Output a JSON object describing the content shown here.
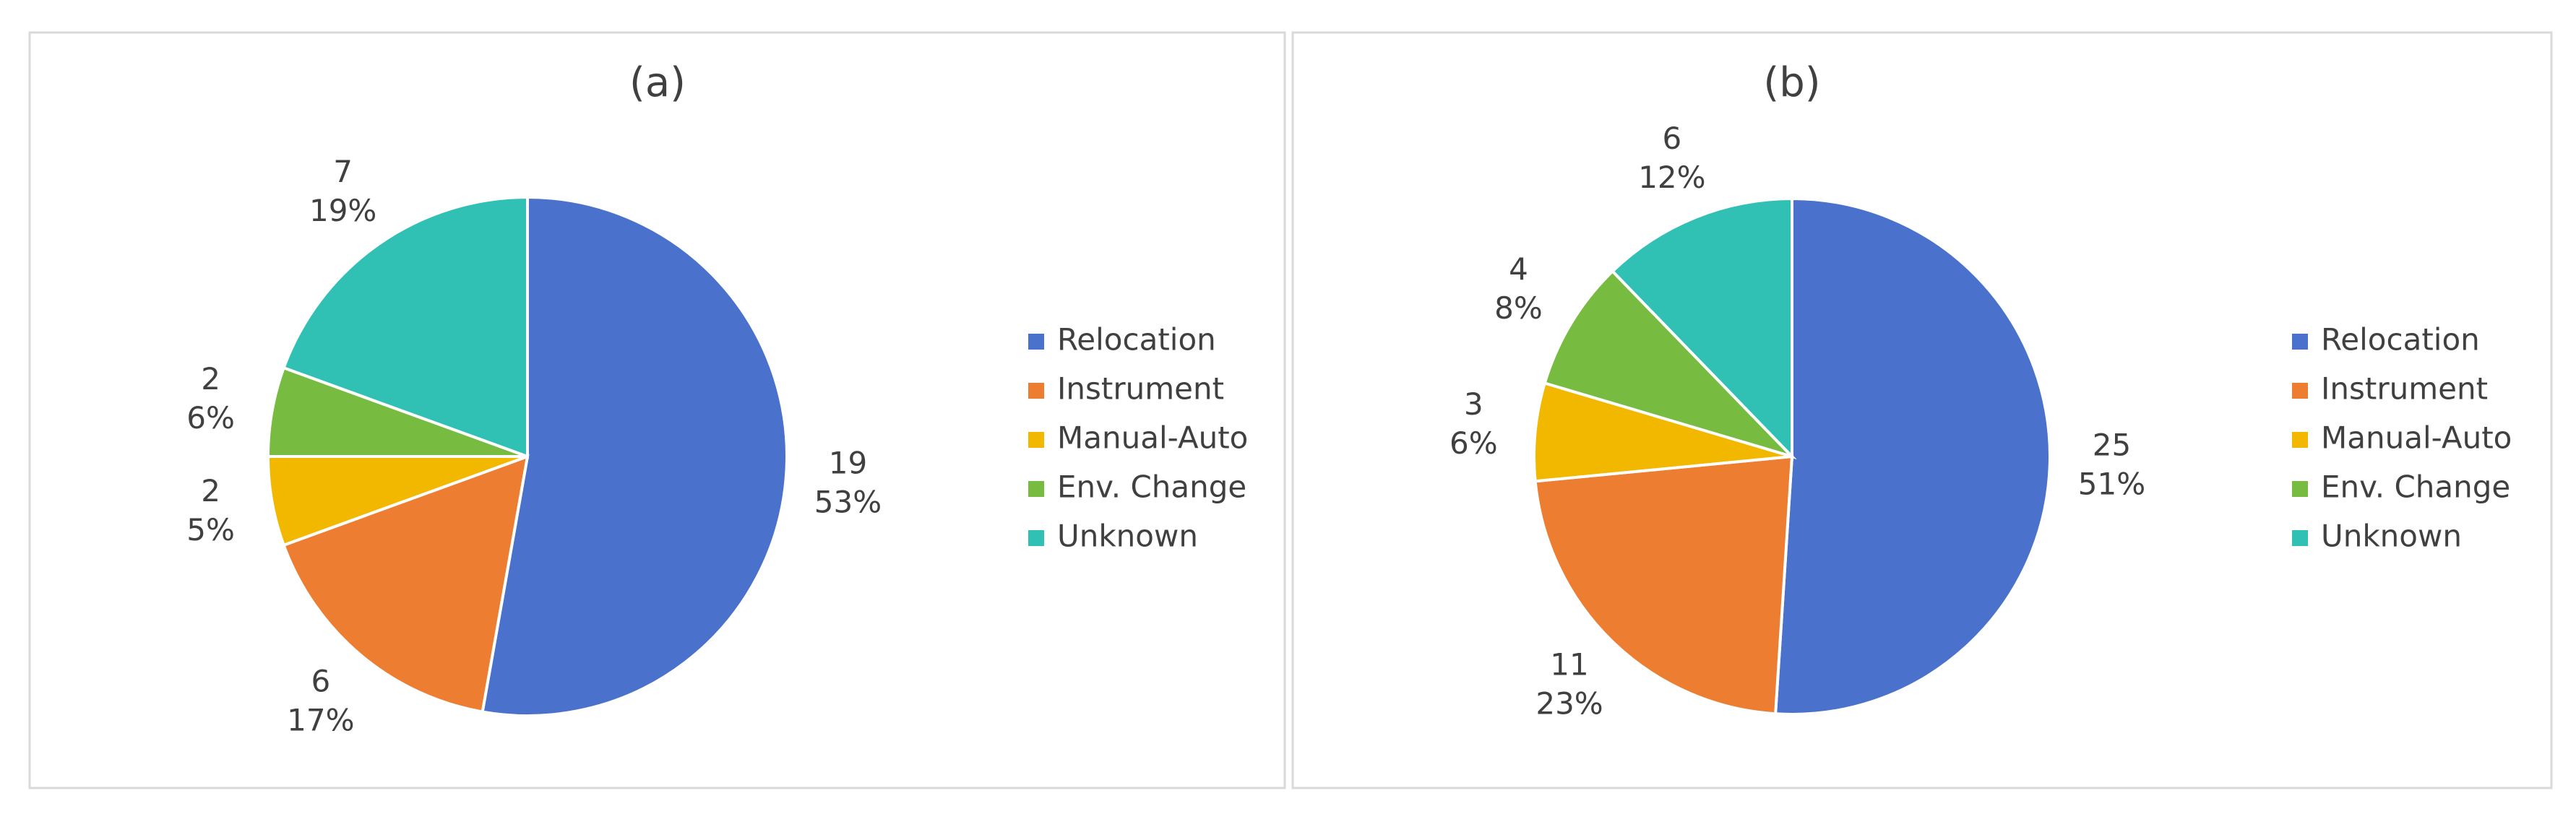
{
  "chart_data": [
    {
      "type": "pie",
      "title": "(a)",
      "categories": [
        "Relocation",
        "Instrument",
        "Manual-Auto",
        "Env. Change",
        "Unknown"
      ],
      "values": [
        19,
        6,
        2,
        2,
        7
      ],
      "percent_labels": [
        "53%",
        "17%",
        "5%",
        "6%",
        "19%"
      ],
      "colors": [
        "#4a72cc",
        "#ed7d31",
        "#f2b800",
        "#77bc41",
        "#30c1b4"
      ],
      "legend": "right"
    },
    {
      "type": "pie",
      "title": "(b)",
      "categories": [
        "Relocation",
        "Instrument",
        "Manual-Auto",
        "Env. Change",
        "Unknown"
      ],
      "values": [
        25,
        11,
        3,
        4,
        6
      ],
      "percent_labels": [
        "51%",
        "23%",
        "6%",
        "8%",
        "12%"
      ],
      "colors": [
        "#4a72cc",
        "#ed7d31",
        "#f2b800",
        "#77bc41",
        "#30c1b4"
      ],
      "legend": "right"
    }
  ]
}
